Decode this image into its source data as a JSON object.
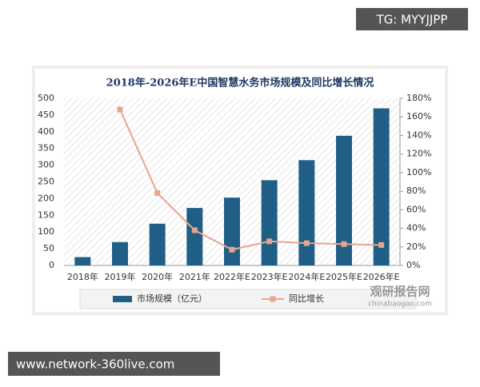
{
  "chart_data": {
    "type": "bar-line",
    "title": "2018年-2026年E中国智慧水务市场规模及同比增长情况",
    "categories": [
      "2018年",
      "2019年",
      "2020年",
      "2021年",
      "2022年E",
      "2023年E",
      "2024年E",
      "2025年E",
      "2026年E"
    ],
    "series": [
      {
        "name": "市场规模（亿元）",
        "type": "bar",
        "color": "#1f5f86",
        "values": [
          25,
          70,
          125,
          172,
          203,
          255,
          315,
          388,
          470
        ]
      },
      {
        "name": "同比增长",
        "type": "line",
        "axis": "y2",
        "color": "#e8a58d",
        "values": [
          null,
          168,
          78,
          38,
          17,
          26,
          24,
          23,
          22
        ]
      }
    ],
    "ylim": [
      0,
      500
    ],
    "yticks": [
      0,
      50,
      100,
      150,
      200,
      250,
      300,
      350,
      400,
      450,
      500
    ],
    "y2lim": [
      0,
      180
    ],
    "y2ticks": [
      {
        "value": 0,
        "label": "0%"
      },
      {
        "value": 20,
        "label": "20%"
      },
      {
        "value": 40,
        "label": "40%"
      },
      {
        "value": 60,
        "label": "60%"
      },
      {
        "value": 80,
        "label": "80%"
      },
      {
        "value": 100,
        "label": "100%"
      },
      {
        "value": 120,
        "label": "120%"
      },
      {
        "value": 140,
        "label": "140%"
      },
      {
        "value": 160,
        "label": "160%"
      },
      {
        "value": 180,
        "label": "180%"
      }
    ],
    "legend": "bottom"
  },
  "watermarks": {
    "top": "TG: MYYJJPP",
    "bottom": "www.network-360live.com",
    "brand": "观研报告网",
    "brand_url": "chinabaogao.com"
  }
}
